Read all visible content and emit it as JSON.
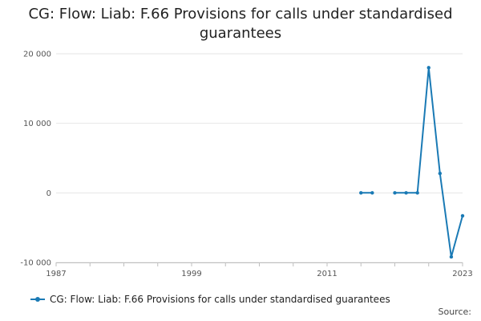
{
  "title_lines": [
    "CG: Flow: Liab: F.66 Provisions for calls under standardised",
    "guarantees"
  ],
  "source_label": "Source:",
  "colors": {
    "series": "#1a7ab5",
    "grid": "#e6e6e6",
    "axis": "#bfbfbf"
  },
  "chart_data": {
    "type": "line",
    "title": "CG: Flow: Liab: F.66 Provisions for calls under standardised guarantees",
    "xlabel": "",
    "ylabel": "",
    "xlim": [
      1987,
      2023
    ],
    "ylim": [
      -10000,
      20000
    ],
    "x_ticks": [
      "1987",
      "1999",
      "2011",
      "2023"
    ],
    "y_ticks": [
      "20 000",
      "10 000",
      "0",
      "-10 000"
    ],
    "y_tick_values": [
      20000,
      10000,
      0,
      -10000
    ],
    "grid": true,
    "legend": "bottom",
    "series": [
      {
        "name": "CG: Flow: Liab: F.66 Provisions for calls under standardised guarantees",
        "segments": [
          [
            [
              2014,
              0
            ],
            [
              2015,
              0
            ]
          ],
          [
            [
              2017,
              0
            ],
            [
              2018,
              0
            ],
            [
              2019,
              0
            ],
            [
              2020,
              18000
            ],
            [
              2021,
              2800
            ],
            [
              2022,
              -9200
            ],
            [
              2023,
              -3300
            ]
          ]
        ]
      }
    ]
  }
}
